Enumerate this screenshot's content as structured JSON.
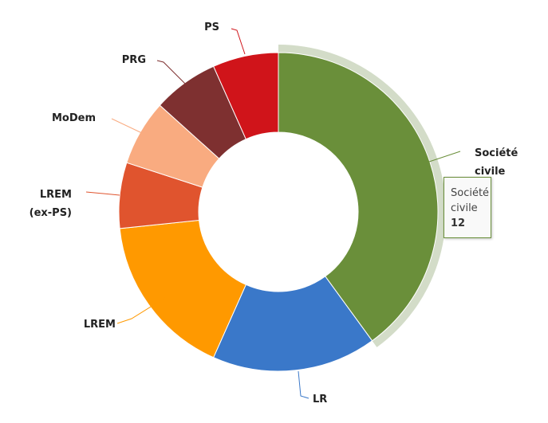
{
  "chart_data": {
    "type": "pie",
    "variant": "donut",
    "title": "",
    "categories": [
      "Société civile",
      "LR",
      "LREM",
      "LREM (ex-PS)",
      "MoDem",
      "PRG",
      "PS"
    ],
    "label_lines": [
      [
        "Société",
        "civile"
      ],
      [
        "LR"
      ],
      [
        "LREM"
      ],
      [
        "LREM",
        "(ex-PS)"
      ],
      [
        "MoDem"
      ],
      [
        "PRG"
      ],
      [
        "PS"
      ]
    ],
    "values": [
      12,
      5,
      5,
      2,
      2,
      2,
      2
    ],
    "colors": [
      "#6a8f3a",
      "#3a78c9",
      "#ff9900",
      "#e0542e",
      "#f9ab80",
      "#7e3030",
      "#d0141a"
    ],
    "highlighted": "Société civile",
    "legend": "none"
  },
  "tooltip": {
    "line1": "Société",
    "line2": "civile",
    "value": "12"
  }
}
